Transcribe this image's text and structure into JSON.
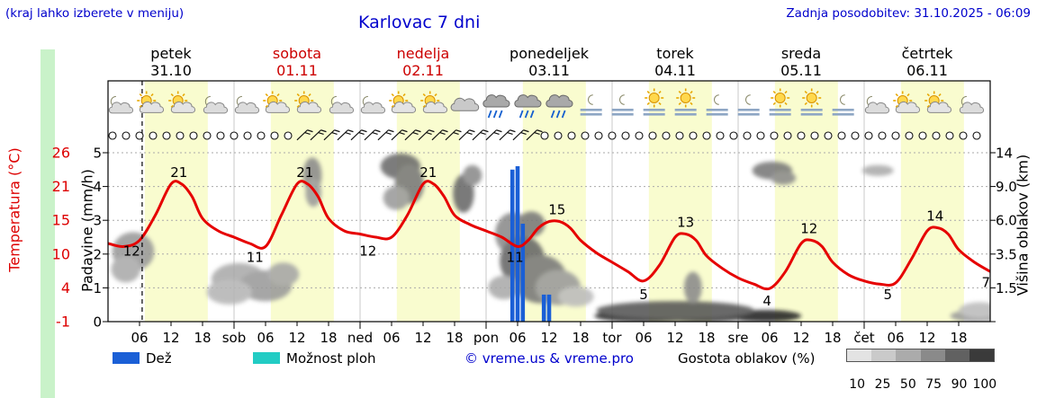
{
  "header": {
    "hint": "(kraj lahko izberete v meniju)",
    "title": "Karlovac 7 dni",
    "updated": "Zadnja posodobitev: 31.10.2025 - 06:09"
  },
  "days": [
    {
      "name": "petek",
      "date": "31.10",
      "highlight": false
    },
    {
      "name": "sobota",
      "date": "01.11",
      "highlight": true
    },
    {
      "name": "nedelja",
      "date": "02.11",
      "highlight": true
    },
    {
      "name": "ponedeljek",
      "date": "03.11",
      "highlight": false
    },
    {
      "name": "torek",
      "date": "04.11",
      "highlight": false
    },
    {
      "name": "sreda",
      "date": "05.11",
      "highlight": false
    },
    {
      "name": "četrtek",
      "date": "06.11",
      "highlight": false
    }
  ],
  "axes": {
    "temp_label": "Temperatura (°C)",
    "precip_label": "Padavine (mm/h)",
    "cloud_label": "Višina oblakov (km)"
  },
  "legend": {
    "rain": "Dež",
    "showers": "Možnost ploh",
    "copyright": "© vreme.us & vreme.pro",
    "cloud_density": "Gostota oblakov (%)",
    "gradient_values": [
      "10",
      "25",
      "50",
      "75",
      "90",
      "100"
    ]
  },
  "colors": {
    "accent_blue": "#0000cc",
    "weekend_red": "#cc0000",
    "temp_curve": "#e60000",
    "rain_bar": "#1a5fd6",
    "showers": "#22ccc4",
    "day_band": "#f9fccf",
    "gradient": [
      "#e3e3e3",
      "#cacaca",
      "#ababab",
      "#8a8a8a",
      "#616161",
      "#3a3a3a"
    ]
  },
  "chart_data": {
    "type": "line",
    "title": "Karlovac 7 dni",
    "x_axis": {
      "unit": "hours from 31.10 00:00",
      "range": [
        0,
        168
      ]
    },
    "x_ticks": [
      {
        "t": 6,
        "label": "06"
      },
      {
        "t": 12,
        "label": "12"
      },
      {
        "t": 18,
        "label": "18"
      },
      {
        "t": 24,
        "label": "sob"
      },
      {
        "t": 30,
        "label": "06"
      },
      {
        "t": 36,
        "label": "12"
      },
      {
        "t": 42,
        "label": "18"
      },
      {
        "t": 48,
        "label": "ned"
      },
      {
        "t": 54,
        "label": "06"
      },
      {
        "t": 60,
        "label": "12"
      },
      {
        "t": 66,
        "label": "18"
      },
      {
        "t": 72,
        "label": "pon"
      },
      {
        "t": 78,
        "label": "06"
      },
      {
        "t": 84,
        "label": "12"
      },
      {
        "t": 90,
        "label": "18"
      },
      {
        "t": 96,
        "label": "tor"
      },
      {
        "t": 102,
        "label": "06"
      },
      {
        "t": 108,
        "label": "12"
      },
      {
        "t": 114,
        "label": "18"
      },
      {
        "t": 120,
        "label": "sre"
      },
      {
        "t": 126,
        "label": "06"
      },
      {
        "t": 132,
        "label": "12"
      },
      {
        "t": 138,
        "label": "18"
      },
      {
        "t": 144,
        "label": "čet"
      },
      {
        "t": 150,
        "label": "06"
      },
      {
        "t": 156,
        "label": "12"
      },
      {
        "t": 162,
        "label": "18"
      }
    ],
    "y_axes": {
      "temperature": {
        "label": "Temperatura (°C)",
        "tick_values": [
          "26",
          "21",
          "15",
          "10",
          "4",
          "-1"
        ],
        "color": "#dd0000"
      },
      "precipitation": {
        "label": "Padavine (mm/h)",
        "tick_values": [
          "5",
          "4",
          "3",
          "2",
          "1",
          "0"
        ]
      },
      "cloud_height": {
        "label": "Višina oblakov (km)",
        "tick_values": [
          "14",
          "9.0",
          "6.0",
          "3.5",
          "1.5"
        ]
      }
    },
    "day_bands": {
      "start_hour": 7,
      "end_hour": 19
    },
    "now_line_t": 6.5,
    "series": [
      {
        "name": "Temperatura",
        "type": "line",
        "color": "#e60000",
        "t": [
          0,
          3,
          6,
          9,
          12,
          14,
          16,
          18,
          21,
          24,
          27,
          30,
          33,
          36,
          38,
          40,
          42,
          45,
          48,
          51,
          54,
          57,
          60,
          62,
          64,
          66,
          69,
          72,
          75,
          78,
          80,
          82,
          84,
          86,
          88,
          90,
          93,
          96,
          99,
          102,
          105,
          108,
          110,
          112,
          114,
          117,
          120,
          123,
          126,
          129,
          132,
          134,
          136,
          138,
          141,
          144,
          147,
          150,
          153,
          156,
          158,
          160,
          162,
          165,
          168
        ],
        "values": [
          11.5,
          11,
          12,
          16,
          21,
          21,
          19,
          15.5,
          13.5,
          12.5,
          11.5,
          11,
          16,
          21,
          21,
          19,
          15.5,
          13.5,
          13,
          12.5,
          12.5,
          16,
          21,
          21,
          19,
          16,
          14.5,
          13.5,
          12.5,
          11,
          12,
          14,
          15,
          15,
          14,
          12,
          10,
          8.5,
          7,
          5.5,
          8,
          12.5,
          13,
          12,
          9.5,
          7.5,
          6,
          5,
          4.3,
          7,
          11.5,
          12,
          11,
          8.5,
          6.5,
          5.5,
          5,
          5.2,
          9,
          13.5,
          14,
          13,
          10.5,
          8.5,
          7
        ]
      },
      {
        "name": "Dež",
        "type": "bar",
        "color": "#1a5fd6",
        "t": [
          77,
          78,
          79,
          83,
          84
        ],
        "values": [
          4.5,
          4.6,
          2.9,
          0.8,
          0.8
        ]
      }
    ],
    "point_labels": [
      {
        "t": 4.5,
        "value": 12,
        "pos": "below"
      },
      {
        "t": 13.5,
        "value": 21,
        "pos": "above"
      },
      {
        "t": 28,
        "value": 11,
        "pos": "below"
      },
      {
        "t": 37.5,
        "value": 21,
        "pos": "above"
      },
      {
        "t": 49.5,
        "value": 12,
        "pos": "below"
      },
      {
        "t": 61,
        "value": 21,
        "pos": "above"
      },
      {
        "t": 77.5,
        "value": 11,
        "pos": "below"
      },
      {
        "t": 85.5,
        "value": 15,
        "pos": "above"
      },
      {
        "t": 102,
        "value": 5,
        "pos": "below"
      },
      {
        "t": 110,
        "value": 13,
        "pos": "above"
      },
      {
        "t": 125.5,
        "value": 4,
        "pos": "below"
      },
      {
        "t": 133.5,
        "value": 12,
        "pos": "above"
      },
      {
        "t": 148.5,
        "value": 5,
        "pos": "below"
      },
      {
        "t": 157.5,
        "value": 14,
        "pos": "above"
      },
      {
        "t": 167.2,
        "value": 7,
        "pos": "below"
      }
    ],
    "clouds": [
      {
        "t": 4.8,
        "km": 3.7,
        "rt": 4,
        "rkm": 1.3,
        "color": "#999999"
      },
      {
        "t": 3.4,
        "km": 2.6,
        "rt": 2.8,
        "rkm": 0.8,
        "color": "#aaaaaa"
      },
      {
        "t": 24.9,
        "km": 2.0,
        "rt": 5.2,
        "rkm": 0.9,
        "color": "#aaaaaa"
      },
      {
        "t": 30,
        "km": 1.6,
        "rt": 5,
        "rkm": 0.8,
        "color": "#9a9a9a"
      },
      {
        "t": 33.4,
        "km": 2.3,
        "rt": 3,
        "rkm": 0.7,
        "color": "#a5a5a5"
      },
      {
        "t": 23.1,
        "km": 1.3,
        "rt": 4.3,
        "rkm": 0.6,
        "color": "#b5b5b5"
      },
      {
        "t": 38.9,
        "km": 10.7,
        "rt": 1.8,
        "rkm": 2.4,
        "color": "#8a8a8a"
      },
      {
        "t": 39.1,
        "km": 8.5,
        "rt": 1.5,
        "rkm": 1.5,
        "color": "#9a9a9a"
      },
      {
        "t": 55.7,
        "km": 12.0,
        "rt": 3.8,
        "rkm": 1.9,
        "color": "#6a6a6a"
      },
      {
        "t": 57.4,
        "km": 9.4,
        "rt": 2.8,
        "rkm": 2.3,
        "color": "#787878"
      },
      {
        "t": 54.9,
        "km": 8.0,
        "rt": 2.5,
        "rkm": 1.1,
        "color": "#9a9a9a"
      },
      {
        "t": 67.7,
        "km": 8.4,
        "rt": 2.0,
        "rkm": 2.0,
        "color": "#686868"
      },
      {
        "t": 69.4,
        "km": 10.7,
        "rt": 1.8,
        "rkm": 1.5,
        "color": "#8a8a8a"
      },
      {
        "t": 77.1,
        "km": 5.0,
        "rt": 3.4,
        "rkm": 1.6,
        "color": "#8a8a8a"
      },
      {
        "t": 78.9,
        "km": 3.1,
        "rt": 4.3,
        "rkm": 1.6,
        "color": "#666666"
      },
      {
        "t": 82.3,
        "km": 2.0,
        "rt": 5.1,
        "rkm": 1.3,
        "color": "#787878"
      },
      {
        "t": 85.7,
        "km": 1.5,
        "rt": 4.3,
        "rkm": 0.9,
        "color": "#9a9a9a"
      },
      {
        "t": 75.4,
        "km": 1.5,
        "rt": 3.0,
        "rkm": 0.6,
        "color": "#aaaaaa"
      },
      {
        "t": 80.6,
        "km": 5.7,
        "rt": 2.6,
        "rkm": 1.0,
        "color": "#787878"
      },
      {
        "t": 89.1,
        "km": 1.1,
        "rt": 3.4,
        "rkm": 0.45,
        "color": "#bbbbbb"
      },
      {
        "t": 102.9,
        "km": 0.25,
        "rt": 10.3,
        "rkm": 0.3,
        "color": "#222222"
      },
      {
        "t": 113.1,
        "km": 0.25,
        "rt": 8.6,
        "rkm": 0.3,
        "color": "#2e2e2e"
      },
      {
        "t": 125.1,
        "km": 0.25,
        "rt": 6.9,
        "rkm": 0.28,
        "color": "#222222"
      },
      {
        "t": 108,
        "km": 0.5,
        "rt": 15,
        "rkm": 0.4,
        "color": "#555555"
      },
      {
        "t": 111.4,
        "km": 1.5,
        "rt": 1.7,
        "rkm": 0.8,
        "color": "#8a8a8a"
      },
      {
        "t": 126.5,
        "km": 11.4,
        "rt": 3.8,
        "rkm": 1.3,
        "color": "#787878"
      },
      {
        "t": 128.6,
        "km": 10.3,
        "rt": 2.4,
        "rkm": 1.0,
        "color": "#8a8a8a"
      },
      {
        "t": 146.6,
        "km": 11.4,
        "rt": 3.0,
        "rkm": 0.8,
        "color": "#aaaaaa"
      },
      {
        "t": 165.4,
        "km": 0.25,
        "rt": 5,
        "rkm": 0.28,
        "color": "#999999"
      },
      {
        "t": 166,
        "km": 0.5,
        "rt": 4,
        "rkm": 0.35,
        "color": "#bbbbbb"
      }
    ],
    "weather_icons": [
      {
        "t": 2,
        "type": "moon-cloud"
      },
      {
        "t": 8,
        "type": "sun-cloud"
      },
      {
        "t": 14,
        "type": "sun-cloud"
      },
      {
        "t": 20,
        "type": "moon-cloud"
      },
      {
        "t": 26,
        "type": "moon-cloud"
      },
      {
        "t": 32,
        "type": "sun-cloud"
      },
      {
        "t": 38,
        "type": "sun-cloud"
      },
      {
        "t": 44,
        "type": "moon-cloud"
      },
      {
        "t": 50,
        "type": "moon-cloud"
      },
      {
        "t": 56,
        "type": "sun-cloud"
      },
      {
        "t": 62,
        "type": "sun-cloud"
      },
      {
        "t": 68,
        "type": "cloud"
      },
      {
        "t": 74,
        "type": "rain"
      },
      {
        "t": 80,
        "type": "rain"
      },
      {
        "t": 86,
        "type": "rain"
      },
      {
        "t": 92,
        "type": "moon-fog"
      },
      {
        "t": 98,
        "type": "moon-fog"
      },
      {
        "t": 104,
        "type": "sun-fog"
      },
      {
        "t": 110,
        "type": "sun-fog"
      },
      {
        "t": 116,
        "type": "moon-fog"
      },
      {
        "t": 122,
        "type": "moon-fog"
      },
      {
        "t": 128,
        "type": "sun-fog"
      },
      {
        "t": 134,
        "type": "sun-fog"
      },
      {
        "t": 140,
        "type": "moon-fog"
      },
      {
        "t": 146,
        "type": "moon-cloud"
      },
      {
        "t": 152,
        "type": "sun-cloud"
      },
      {
        "t": 158,
        "type": "sun-cloud"
      },
      {
        "t": 164,
        "type": "moon-cloud"
      }
    ],
    "wind_symbols": "oooooooooooooo//////////////////ooooooooooooooooooooooooooooooooo"
  }
}
